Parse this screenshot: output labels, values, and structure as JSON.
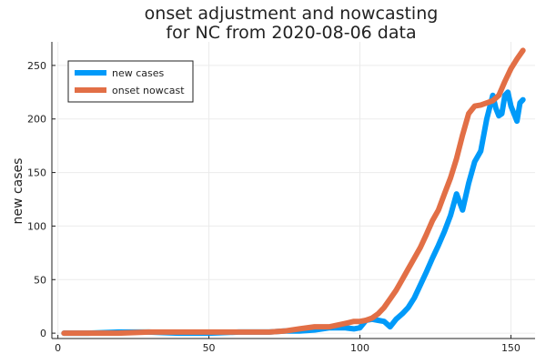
{
  "chart_data": {
    "type": "line",
    "title": "onset adjustment and nowcasting",
    "subtitle": "for NC from 2020-08-06 data",
    "xlabel": "",
    "ylabel": "new cases",
    "xlim": [
      -2,
      158
    ],
    "ylim": [
      -5,
      272
    ],
    "xticks": [
      0,
      50,
      100,
      150
    ],
    "yticks": [
      0,
      50,
      100,
      150,
      200,
      250
    ],
    "grid": true,
    "legend_position": "top-left",
    "series": [
      {
        "name": "new cases",
        "color": "#009AF9",
        "x": [
          2,
          10,
          20,
          30,
          40,
          50,
          60,
          70,
          75,
          80,
          85,
          90,
          95,
          98,
          100,
          102,
          104,
          106,
          108,
          110,
          112,
          114,
          116,
          118,
          120,
          122,
          124,
          126,
          128,
          130,
          132,
          134,
          136,
          138,
          140,
          142,
          144,
          145,
          146,
          147,
          148,
          149,
          150,
          152,
          153,
          154
        ],
        "y": [
          0,
          0,
          1,
          1,
          0,
          0,
          1,
          1,
          2,
          2,
          3,
          5,
          5,
          4,
          5,
          12,
          13,
          12,
          11,
          6,
          13,
          18,
          24,
          33,
          45,
          57,
          70,
          82,
          95,
          110,
          130,
          115,
          140,
          160,
          170,
          200,
          222,
          210,
          203,
          205,
          222,
          225,
          212,
          198,
          215,
          218
        ]
      },
      {
        "name": "onset nowcast",
        "color": "#E26F46",
        "x": [
          2,
          10,
          20,
          30,
          40,
          50,
          60,
          70,
          75,
          80,
          85,
          90,
          95,
          98,
          100,
          102,
          104,
          106,
          108,
          110,
          112,
          114,
          116,
          118,
          120,
          122,
          124,
          126,
          128,
          130,
          132,
          134,
          136,
          138,
          140,
          142,
          144,
          146,
          148,
          150,
          152,
          154
        ],
        "y": [
          0,
          0,
          0,
          1,
          1,
          1,
          1,
          1,
          2,
          4,
          6,
          6,
          9,
          11,
          11,
          12,
          14,
          18,
          24,
          32,
          40,
          50,
          60,
          70,
          80,
          92,
          105,
          115,
          130,
          145,
          163,
          185,
          205,
          212,
          213,
          215,
          217,
          222,
          235,
          247,
          256,
          264
        ]
      }
    ]
  }
}
